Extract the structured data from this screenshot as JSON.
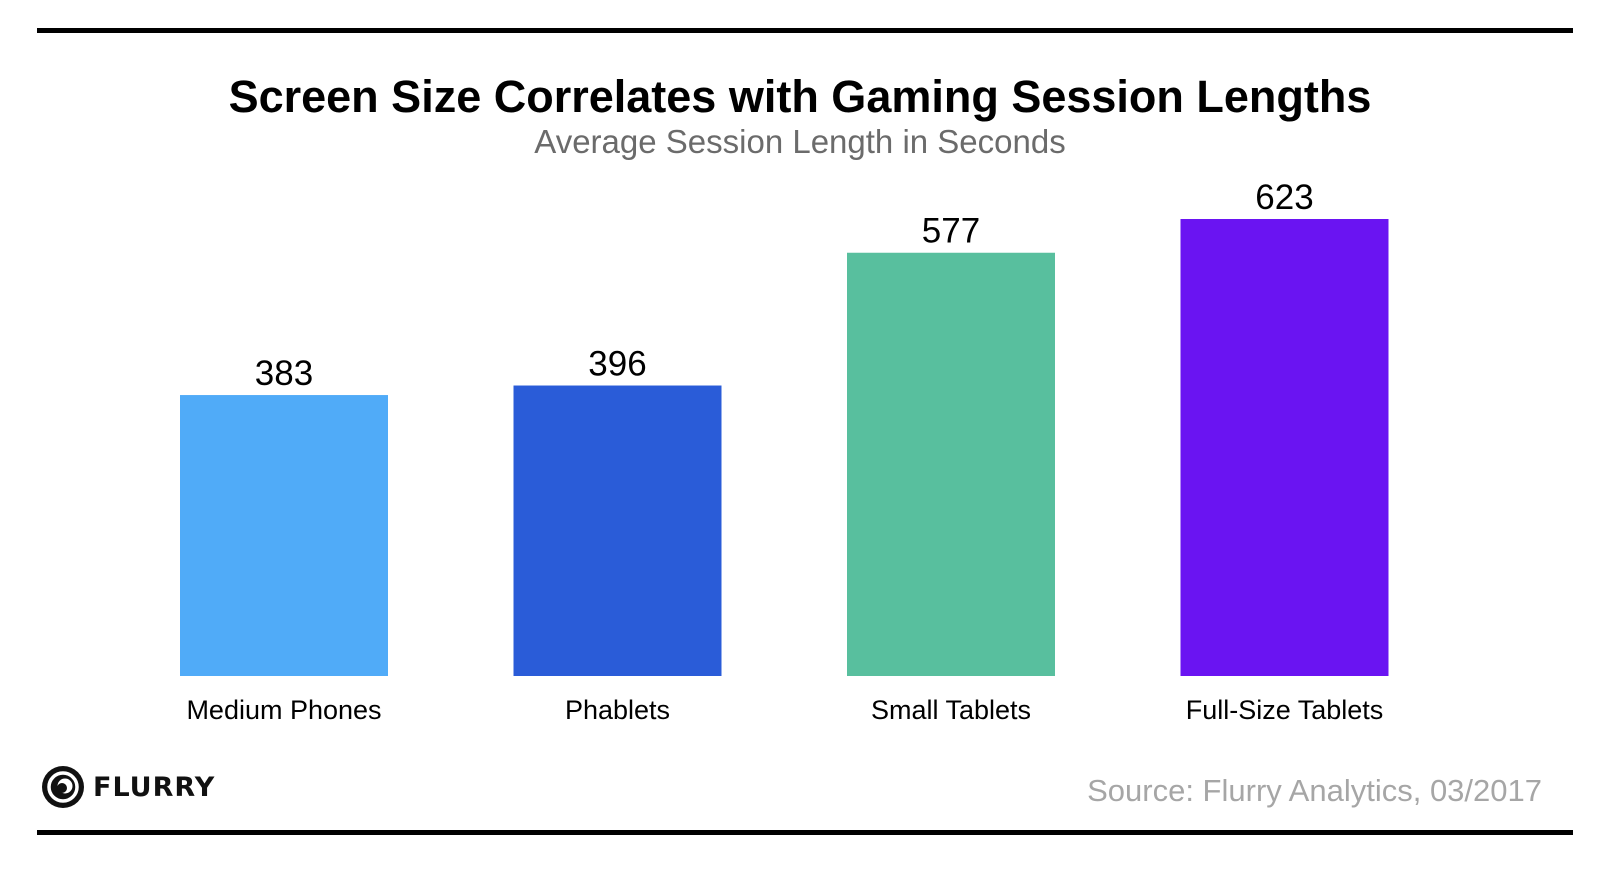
{
  "chart_data": {
    "type": "bar",
    "title": "Screen Size Correlates with Gaming Session Lengths",
    "subtitle": "Average Session Length in Seconds",
    "categories": [
      "Medium Phones",
      "Phablets",
      "Small Tablets",
      "Full-Size Tablets"
    ],
    "values": [
      383,
      396,
      577,
      623
    ],
    "colors": [
      "#50ABF8",
      "#2A5CD8",
      "#58BF9E",
      "#6A14F2"
    ],
    "xlabel": "",
    "ylabel": "",
    "ylim": [
      0,
      623
    ],
    "grid": false,
    "legend": "none",
    "data_labels": true
  },
  "footer": {
    "logo_text": "FLURRY",
    "source": "Source: Flurry Analytics, 03/2017"
  }
}
